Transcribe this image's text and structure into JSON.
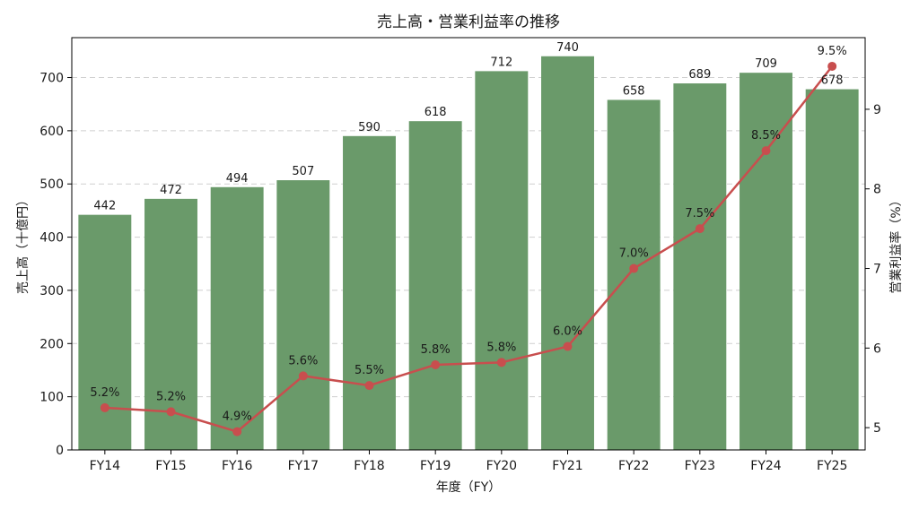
{
  "chart_data": {
    "type": "bar+line",
    "title": "売上高・営業利益率の推移",
    "xlabel": "年度（FY）",
    "ylabel_left": "売上高（十億円）",
    "ylabel_right": "営業利益率（%）",
    "categories": [
      "FY14",
      "FY15",
      "FY16",
      "FY17",
      "FY18",
      "FY19",
      "FY20",
      "FY21",
      "FY22",
      "FY23",
      "FY24",
      "FY25"
    ],
    "bar_series": {
      "values": [
        442,
        472,
        494,
        507,
        590,
        618,
        712,
        740,
        658,
        689,
        709,
        678
      ],
      "labels": [
        "442",
        "472",
        "494",
        "507",
        "590",
        "618",
        "712",
        "740",
        "658",
        "689",
        "709",
        "678"
      ],
      "color": "#6a9a6a"
    },
    "line_series": {
      "values": [
        5.25,
        5.2,
        4.95,
        5.65,
        5.53,
        5.79,
        5.82,
        6.02,
        7.0,
        7.5,
        8.48,
        9.54
      ],
      "labels": [
        "5.2%",
        "5.2%",
        "4.9%",
        "5.6%",
        "5.5%",
        "5.8%",
        "5.8%",
        "6.0%",
        "7.0%",
        "7.5%",
        "8.5%",
        "9.5%"
      ],
      "color": "#c84e4e"
    },
    "ylim_left": [
      0,
      775
    ],
    "yticks_left": [
      0,
      100,
      200,
      300,
      400,
      500,
      600,
      700
    ],
    "ylim_right": [
      4.72,
      9.9
    ],
    "yticks_right": [
      5,
      6,
      7,
      8,
      9
    ],
    "grid": true
  }
}
